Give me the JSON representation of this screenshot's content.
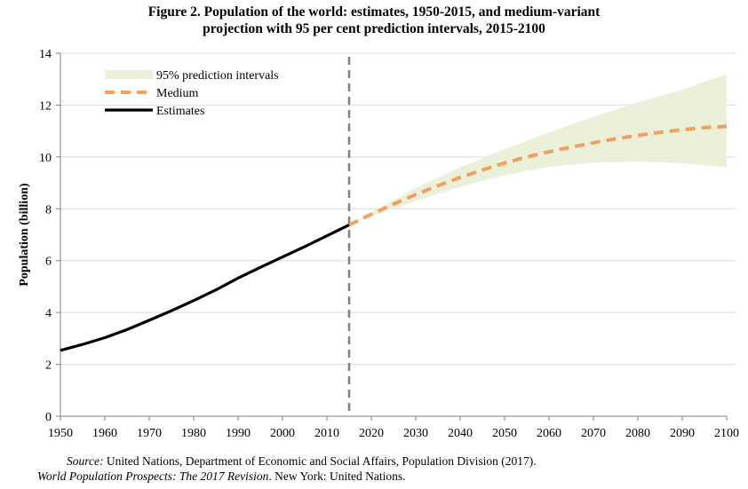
{
  "figure": {
    "title_line1": "Figure 2.  Population of the world: estimates, 1950-2015, and medium-variant",
    "title_line2": "projection with 95 per cent prediction intervals, 2015-2100",
    "source_label": "Source:",
    "source_line1": " United Nations, Department of Economic and Social Affairs, Population Division (2017).",
    "source_title": "World Population Prospects: The 2017 Revision",
    "source_line2": ". New York: United Nations."
  },
  "chart_data": {
    "type": "line",
    "ylabel": "Population (billion)",
    "xlabel": "",
    "xlim": [
      1950,
      2100
    ],
    "ylim": [
      0,
      14
    ],
    "x_ticks": [
      1950,
      1960,
      1970,
      1980,
      1990,
      2000,
      2010,
      2020,
      2030,
      2040,
      2050,
      2060,
      2070,
      2080,
      2090,
      2100
    ],
    "y_ticks": [
      0,
      2,
      4,
      6,
      8,
      10,
      12,
      14
    ],
    "grid": "horizontal",
    "legend_position": "top-left",
    "divider_x": 2015,
    "series": [
      {
        "name": "Estimates",
        "color": "#000000",
        "style": "solid",
        "x": [
          1950,
          1955,
          1960,
          1965,
          1970,
          1975,
          1980,
          1985,
          1990,
          1995,
          2000,
          2005,
          2010,
          2015
        ],
        "y": [
          2.54,
          2.77,
          3.03,
          3.34,
          3.7,
          4.07,
          4.46,
          4.87,
          5.33,
          5.74,
          6.14,
          6.54,
          6.96,
          7.38
        ]
      },
      {
        "name": "Medium",
        "color": "#f0a060",
        "style": "dashed",
        "x": [
          2015,
          2020,
          2025,
          2030,
          2035,
          2040,
          2045,
          2050,
          2055,
          2060,
          2065,
          2070,
          2075,
          2080,
          2085,
          2090,
          2095,
          2100
        ],
        "y": [
          7.38,
          7.79,
          8.18,
          8.55,
          8.89,
          9.21,
          9.5,
          9.77,
          10.0,
          10.2,
          10.38,
          10.55,
          10.7,
          10.83,
          10.95,
          11.05,
          11.13,
          11.18
        ]
      }
    ],
    "band": {
      "name": "95% prediction intervals",
      "color": "#ebf0d8",
      "x": [
        2015,
        2020,
        2030,
        2040,
        2050,
        2060,
        2070,
        2080,
        2090,
        2100
      ],
      "lower": [
        7.38,
        7.72,
        8.3,
        8.85,
        9.3,
        9.62,
        9.78,
        9.82,
        9.76,
        9.6
      ],
      "upper": [
        7.38,
        7.86,
        8.8,
        9.6,
        10.3,
        10.95,
        11.55,
        12.1,
        12.6,
        13.2
      ]
    }
  }
}
